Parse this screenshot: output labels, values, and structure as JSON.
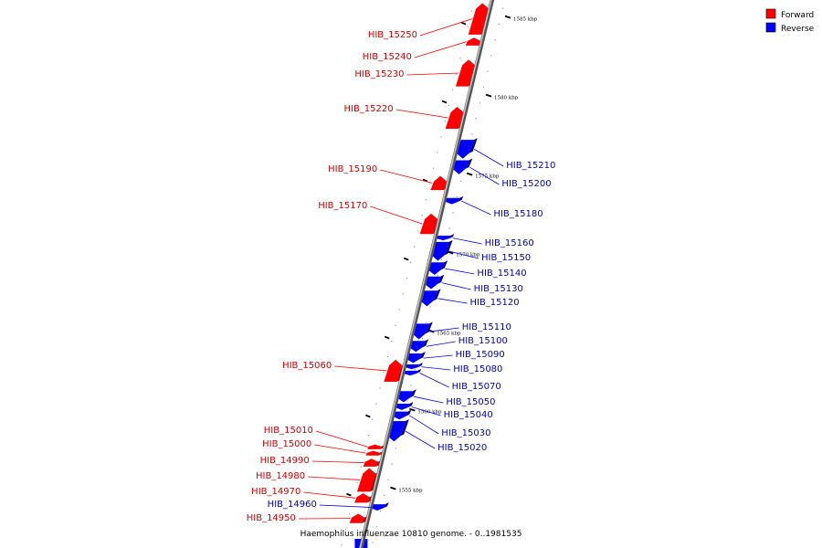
{
  "title": "Haemophilus influenzae 10810 genome. - 0..1981535",
  "colors": {
    "forward": "#ff0000",
    "reverse": "#0000ff",
    "backbone": "#888888",
    "leader": "#ff0000",
    "leader_rev": "#0000ff"
  },
  "legend": [
    {
      "label": "Forward",
      "strand": "forward"
    },
    {
      "label": "Reverse",
      "strand": "reverse"
    }
  ],
  "axis": {
    "unit": "kbp",
    "ticks": [
      {
        "kbp": 1585,
        "label": "1585 kbp"
      },
      {
        "kbp": 1580,
        "label": "1580 kbp"
      },
      {
        "kbp": 1575,
        "label": "1575 kbp"
      },
      {
        "kbp": 1570,
        "label": "1570 kbp"
      },
      {
        "kbp": 1565,
        "label": "1565 kbp"
      },
      {
        "kbp": 1560,
        "label": "1560 kbp"
      },
      {
        "kbp": 1555,
        "label": "1555 kbp"
      }
    ]
  },
  "genes": [
    {
      "id": "HIB_15250",
      "strand": "forward",
      "start": 1585.3,
      "end": 1583.3
    },
    {
      "id": "HIB_15240",
      "strand": "forward",
      "start": 1583.1,
      "end": 1582.6
    },
    {
      "id": "HIB_15230",
      "strand": "forward",
      "start": 1581.7,
      "end": 1580.0
    },
    {
      "id": "HIB_15220",
      "strand": "forward",
      "start": 1578.7,
      "end": 1577.3
    },
    {
      "id": "HIB_15210",
      "strand": "reverse",
      "start": 1576.6,
      "end": 1575.4
    },
    {
      "id": "HIB_15200",
      "strand": "reverse",
      "start": 1575.3,
      "end": 1574.4
    },
    {
      "id": "HIB_15190",
      "strand": "forward",
      "start": 1574.3,
      "end": 1573.4
    },
    {
      "id": "HIB_15180",
      "strand": "reverse",
      "start": 1572.9,
      "end": 1572.5
    },
    {
      "id": "HIB_15170",
      "strand": "forward",
      "start": 1571.9,
      "end": 1570.6
    },
    {
      "id": "HIB_15160",
      "strand": "reverse",
      "start": 1570.5,
      "end": 1570.2
    },
    {
      "id": "HIB_15150",
      "strand": "reverse",
      "start": 1570.1,
      "end": 1568.9
    },
    {
      "id": "HIB_15140",
      "strand": "reverse",
      "start": 1568.8,
      "end": 1568.0
    },
    {
      "id": "HIB_15130",
      "strand": "reverse",
      "start": 1567.9,
      "end": 1567.1
    },
    {
      "id": "HIB_15120",
      "strand": "reverse",
      "start": 1567.0,
      "end": 1566.0
    },
    {
      "id": "HIB_15110",
      "strand": "reverse",
      "start": 1564.9,
      "end": 1563.9
    },
    {
      "id": "HIB_15100",
      "strand": "reverse",
      "start": 1563.8,
      "end": 1563.1
    },
    {
      "id": "HIB_15090",
      "strand": "reverse",
      "start": 1563.0,
      "end": 1562.4
    },
    {
      "id": "HIB_15080",
      "strand": "reverse",
      "start": 1562.3,
      "end": 1562.0
    },
    {
      "id": "HIB_15070",
      "strand": "reverse",
      "start": 1561.9,
      "end": 1561.6
    },
    {
      "id": "HIB_15060",
      "strand": "forward",
      "start": 1562.6,
      "end": 1561.2
    },
    {
      "id": "HIB_15050",
      "strand": "reverse",
      "start": 1560.6,
      "end": 1559.9
    },
    {
      "id": "HIB_15040",
      "strand": "reverse",
      "start": 1559.8,
      "end": 1559.4
    },
    {
      "id": "HIB_15030",
      "strand": "reverse",
      "start": 1559.3,
      "end": 1558.8
    },
    {
      "id": "HIB_15020",
      "strand": "reverse",
      "start": 1558.7,
      "end": 1557.4
    },
    {
      "id": "HIB_15010",
      "strand": "forward",
      "start": 1557.2,
      "end": 1556.9
    },
    {
      "id": "HIB_15000",
      "strand": "forward",
      "start": 1556.8,
      "end": 1556.5
    },
    {
      "id": "HIB_14990",
      "strand": "forward",
      "start": 1556.3,
      "end": 1555.8
    },
    {
      "id": "HIB_14980",
      "strand": "forward",
      "start": 1555.7,
      "end": 1554.2
    },
    {
      "id": "HIB_14970",
      "strand": "forward",
      "start": 1554.1,
      "end": 1553.5
    },
    {
      "id": "HIB_14960",
      "strand": "reverse",
      "start": 1553.4,
      "end": 1553.0
    },
    {
      "id": "HIB_14950",
      "strand": "forward",
      "start": 1552.8,
      "end": 1552.2
    }
  ]
}
